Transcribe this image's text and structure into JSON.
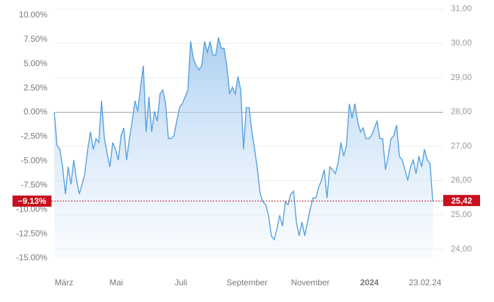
{
  "chart_data": {
    "type": "area",
    "series": [
      {
        "name": null,
        "color": "#5ba3e0",
        "values": [
          0,
          -3.4,
          -3.8,
          -5.6,
          -8.4,
          -5.6,
          -7.4,
          -4.9,
          -7.0,
          -8.4,
          -7.4,
          -6.3,
          -3.8,
          -2.0,
          -3.8,
          -2.7,
          -3.1,
          1.2,
          -2.7,
          -4.2,
          -5.6,
          -3.1,
          -3.8,
          -4.9,
          -2.4,
          -1.6,
          -4.9,
          -2.7,
          -0.9,
          1.2,
          0.1,
          2.6,
          4.8,
          -2.0,
          1.6,
          -2.0,
          0.1,
          -0.9,
          1.9,
          2.3,
          0.9,
          -2.7,
          -2.7,
          -2.4,
          -0.9,
          0.5,
          0.9,
          1.6,
          2.3,
          7.3,
          5.5,
          4.8,
          4.4,
          4.8,
          7.3,
          6.2,
          7.3,
          5.9,
          5.9,
          7.7,
          6.6,
          6.6,
          4.8,
          1.9,
          2.6,
          1.9,
          3.7,
          2.3,
          -3.8,
          0.5,
          0.5,
          -2.0,
          -3.8,
          -5.9,
          -8.4,
          -9.2,
          -9.5,
          -10.6,
          -12.7,
          -13.1,
          -12.0,
          -10.6,
          -11.7,
          -9.2,
          -9.5,
          -8.4,
          -8.1,
          -11.3,
          -12.7,
          -11.3,
          -12.7,
          -11.3,
          -9.9,
          -8.8,
          -8.8,
          -7.7,
          -7.0,
          -5.9,
          -8.8,
          -5.6,
          -5.9,
          -6.3,
          -5.2,
          -3.1,
          -4.5,
          -3.4,
          0.9,
          -0.6,
          0.9,
          -0.9,
          -2.0,
          -1.6,
          -2.7,
          -2.7,
          -2.4,
          -1.6,
          -0.9,
          -2.7,
          -2.7,
          -5.9,
          -4.5,
          -2.7,
          -2.4,
          -1.3,
          -4.5,
          -4.9,
          -5.9,
          -7.0,
          -5.6,
          -4.9,
          -6.3,
          -4.5,
          -5.6,
          -3.8,
          -4.9,
          -5.2,
          -9.13
        ]
      }
    ],
    "xlim": [
      0,
      136
    ],
    "xticks": [
      {
        "value": 3.5,
        "label": "März"
      },
      {
        "value": 22.25,
        "label": "Mai"
      },
      {
        "value": 45.5,
        "label": "Juli"
      },
      {
        "value": 69.25,
        "label": "September"
      },
      {
        "value": 92,
        "label": "November"
      },
      {
        "value": 113.25,
        "label": "2024"
      },
      {
        "value": 133.25,
        "label": "23.02.24"
      }
    ],
    "ylim": [
      -15,
      10.64
    ],
    "yticks": [
      {
        "value": 10,
        "label": "10.00%"
      },
      {
        "value": 7.5,
        "label": "7.50%"
      },
      {
        "value": 5,
        "label": "5.00%"
      },
      {
        "value": 2.5,
        "label": "2.50%"
      },
      {
        "value": 0,
        "label": "0.00%"
      },
      {
        "value": -2.5,
        "label": "-2.50%"
      },
      {
        "value": -5,
        "label": "-5.00%"
      },
      {
        "value": -7.5,
        "label": "-7.50%"
      },
      {
        "value": -10,
        "label": "-10.00%"
      },
      {
        "value": -12.5,
        "label": "-12.50%"
      },
      {
        "value": -15,
        "label": "-15.00%"
      }
    ],
    "y2lim": [
      23.74,
      31
    ],
    "y2ticks": [
      {
        "value": 31,
        "label": "31,00"
      },
      {
        "value": 30,
        "label": "30,00"
      },
      {
        "value": 29,
        "label": "29,00"
      },
      {
        "value": 28,
        "label": "28,00"
      },
      {
        "value": 27,
        "label": "27,00"
      },
      {
        "value": 26,
        "label": "26,00"
      },
      {
        "value": 25,
        "label": "25,00"
      },
      {
        "value": 24,
        "label": "24,00"
      }
    ],
    "grid": true,
    "reference_line": 0,
    "annotations": [
      {
        "value": -9.13,
        "label": "−9.13%",
        "axis": "y"
      },
      {
        "value": 25.42,
        "label": "25,42",
        "axis": "y2"
      }
    ]
  }
}
